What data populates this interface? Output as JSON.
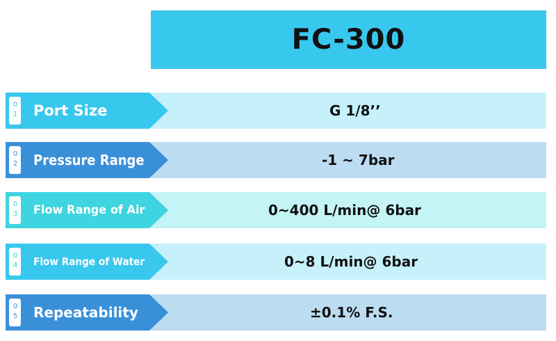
{
  "header": {
    "title": "FC-300"
  },
  "specs": [
    {
      "number": "01",
      "label": "Port Size",
      "value": "G 1/8’’"
    },
    {
      "number": "02",
      "label": "Pressure Range",
      "value": "-1 ~ 7bar"
    },
    {
      "number": "03",
      "label": "Flow Range of Air",
      "value": "0~400 L/min@ 6bar"
    },
    {
      "number": "04",
      "label": "Flow Range of Water",
      "value": "0~8 L/min@ 6bar"
    },
    {
      "number": "05",
      "label": "Repeatability",
      "value": "±0.1% F.S."
    }
  ],
  "colors": {
    "title_bg": "#38c8ee",
    "label_cyan": "#38c8ee",
    "label_blue": "#3a8fd9",
    "label_teal": "#3ed4e0",
    "value_light_cyan": "#c6f1fb",
    "value_light_blue": "#bcdcf2",
    "value_light_teal": "#c4f4f6"
  }
}
